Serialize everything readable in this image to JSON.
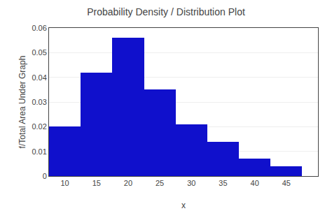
{
  "chart_data": {
    "type": "bar",
    "title": "Probability Density / Distribution Plot",
    "xlabel": "x",
    "ylabel": "f/Total Area Under Graph",
    "x": [
      10,
      15,
      20,
      25,
      30,
      35,
      40,
      45
    ],
    "values": [
      0.02,
      0.042,
      0.056,
      0.035,
      0.021,
      0.014,
      0.007,
      0.004
    ],
    "color": "#1010CC",
    "xlim": [
      7.5,
      50
    ],
    "xticks": [
      10,
      15,
      20,
      25,
      30,
      35,
      40,
      45
    ],
    "ylim": [
      0,
      0.06
    ],
    "yticks": [
      0,
      0.01,
      0.02,
      0.03,
      0.04,
      0.05,
      0.06
    ],
    "grid": true
  }
}
